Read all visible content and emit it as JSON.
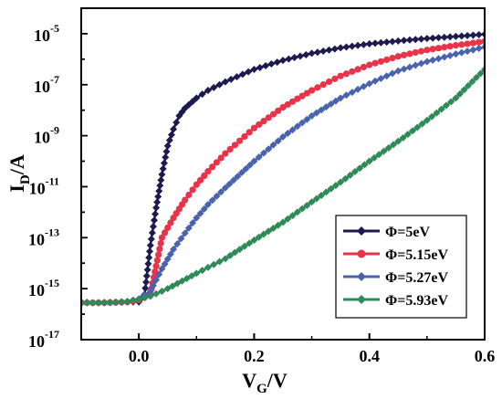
{
  "chart_data": {
    "type": "line",
    "xlabel": {
      "main": "V",
      "sub": "G",
      "suffix": "/V"
    },
    "ylabel": {
      "main": "I",
      "sub": "D",
      "suffix": "/A"
    },
    "xlim": [
      -0.1,
      0.6
    ],
    "ylim": [
      1e-17,
      0.0001
    ],
    "yscale": "log",
    "grid": false,
    "legend_position": "bottom-right",
    "x_ticks": [
      {
        "value": 0.0,
        "label": "0.0"
      },
      {
        "value": 0.2,
        "label": "0.2"
      },
      {
        "value": 0.4,
        "label": "0.4"
      },
      {
        "value": 0.6,
        "label": "0.6"
      }
    ],
    "y_ticks": [
      {
        "value": 1e-05,
        "base": "10",
        "exp": "-5"
      },
      {
        "value": 1e-07,
        "base": "10",
        "exp": "-7"
      },
      {
        "value": 1e-09,
        "base": "10",
        "exp": "-9"
      },
      {
        "value": 1e-11,
        "base": "10",
        "exp": "-11"
      },
      {
        "value": 1e-13,
        "base": "10",
        "exp": "-13"
      },
      {
        "value": 1e-15,
        "base": "10",
        "exp": "-15"
      },
      {
        "value": 1e-17,
        "base": "10",
        "exp": "-17"
      }
    ],
    "series": [
      {
        "name": "Φ=5eV",
        "color": "#1c1a4e",
        "marker": "diamond",
        "x": [
          -0.1,
          -0.08,
          -0.06,
          -0.04,
          -0.02,
          0.0,
          0.01,
          0.02,
          0.03,
          0.04,
          0.05,
          0.06,
          0.07,
          0.08,
          0.1,
          0.12,
          0.15,
          0.2,
          0.25,
          0.3,
          0.35,
          0.4,
          0.45,
          0.5,
          0.55,
          0.6
        ],
        "y": [
          3e-16,
          2.8e-16,
          2.8e-16,
          2.9e-16,
          3e-16,
          3e-16,
          6e-16,
          5e-14,
          1.5e-12,
          3e-11,
          4e-10,
          1.8e-09,
          6e-09,
          1.2e-08,
          3e-08,
          6e-08,
          1.3e-07,
          4e-07,
          9e-07,
          1.7e-06,
          2.8e-06,
          4e-06,
          5.2e-06,
          6.5e-06,
          7.8e-06,
          9.5e-06
        ]
      },
      {
        "name": "Φ=5.15eV",
        "color": "#e8334a",
        "marker": "circle",
        "x": [
          -0.1,
          -0.08,
          -0.06,
          -0.04,
          -0.02,
          0.0,
          0.02,
          0.04,
          0.06,
          0.08,
          0.1,
          0.12,
          0.15,
          0.2,
          0.25,
          0.3,
          0.35,
          0.4,
          0.45,
          0.5,
          0.55,
          0.6
        ],
        "y": [
          2.8e-16,
          2.8e-16,
          2.8e-16,
          2.9e-16,
          3e-16,
          3.5e-16,
          6e-16,
          1e-13,
          6e-13,
          3e-12,
          1.2e-11,
          4e-11,
          2e-10,
          2e-09,
          1.3e-08,
          6e-08,
          2.2e-07,
          6e-07,
          1.3e-06,
          2.3e-06,
          3.5e-06,
          5e-06
        ]
      },
      {
        "name": "Φ=5.27eV",
        "color": "#4a63ad",
        "marker": "diamond",
        "x": [
          -0.1,
          -0.08,
          -0.06,
          -0.04,
          -0.02,
          0.0,
          0.02,
          0.04,
          0.06,
          0.08,
          0.1,
          0.12,
          0.15,
          0.2,
          0.25,
          0.3,
          0.35,
          0.4,
          0.45,
          0.5,
          0.55,
          0.6
        ],
        "y": [
          2.8e-16,
          2.8e-16,
          2.8e-16,
          2.9e-16,
          3.1e-16,
          4e-16,
          8e-16,
          6e-15,
          3.5e-14,
          1.5e-13,
          6e-13,
          2e-12,
          9e-12,
          1e-10,
          9e-10,
          6e-09,
          3e-08,
          1.1e-07,
          3.5e-07,
          8e-07,
          1.6e-06,
          3e-06
        ]
      },
      {
        "name": "Φ=5.93eV",
        "color": "#2e8b57",
        "marker": "diamond",
        "x": [
          -0.1,
          -0.08,
          -0.06,
          -0.04,
          -0.02,
          0.0,
          0.02,
          0.05,
          0.1,
          0.15,
          0.2,
          0.25,
          0.3,
          0.35,
          0.4,
          0.45,
          0.5,
          0.55,
          0.6
        ],
        "y": [
          2.8e-16,
          2.8e-16,
          2.9e-16,
          3e-16,
          3.2e-16,
          3.8e-16,
          5e-16,
          1e-15,
          4e-15,
          1.5e-14,
          8e-14,
          4e-13,
          2.5e-12,
          1.5e-11,
          1e-10,
          6e-10,
          4e-09,
          3e-08,
          4e-07
        ]
      }
    ]
  }
}
